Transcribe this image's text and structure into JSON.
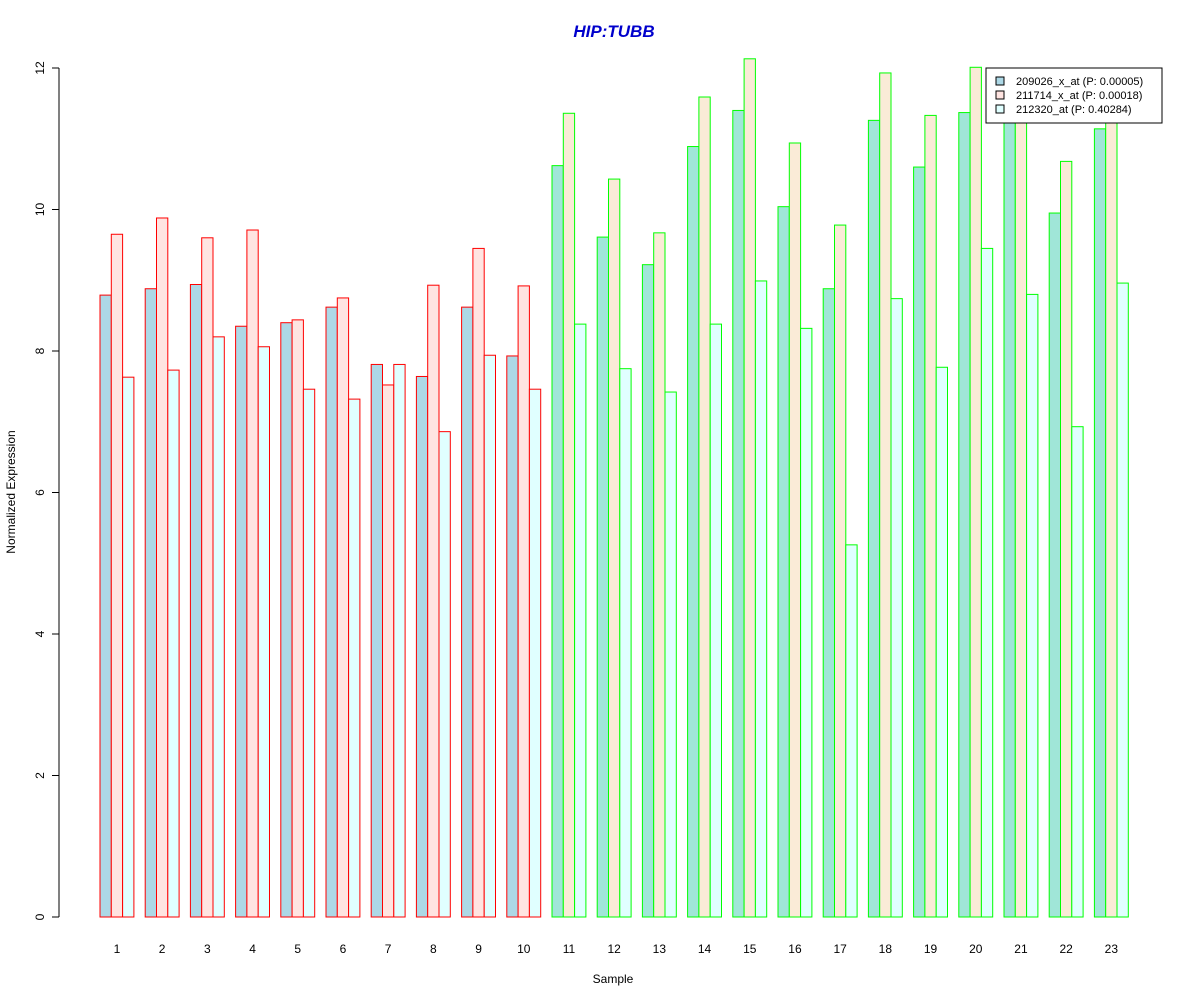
{
  "chart_data": {
    "type": "bar",
    "title": "HIP:TUBB",
    "title_color": "#0000CC",
    "xlabel": "Sample",
    "ylabel": "Normalized Expression",
    "ylim": [
      0,
      12
    ],
    "yticks": [
      "0",
      "2",
      "4",
      "6",
      "8",
      "10",
      "12"
    ],
    "grid": false,
    "legend_position": "top-right",
    "categories": [
      "1",
      "2",
      "3",
      "4",
      "5",
      "6",
      "7",
      "8",
      "9",
      "10",
      "11",
      "12",
      "13",
      "14",
      "15",
      "16",
      "17",
      "18",
      "19",
      "20",
      "21",
      "22",
      "23"
    ],
    "group_border_colors": [
      "#FF0000",
      "#FF0000",
      "#FF0000",
      "#FF0000",
      "#FF0000",
      "#FF0000",
      "#FF0000",
      "#FF0000",
      "#FF0000",
      "#FF0000",
      "#00FF00",
      "#00FF00",
      "#00FF00",
      "#00FF00",
      "#00FF00",
      "#00FF00",
      "#00FF00",
      "#00FF00",
      "#00FF00",
      "#00FF00",
      "#00FF00",
      "#00FF00",
      "#00FF00"
    ],
    "series": [
      {
        "name": "209026_x_at (P: 0.00005)",
        "fill_first_group": "#ADD8E6",
        "fill_second_group": "#A0E6D8",
        "values": [
          8.79,
          8.88,
          8.94,
          8.35,
          8.4,
          8.62,
          7.81,
          7.64,
          8.62,
          7.93,
          10.62,
          9.61,
          9.22,
          10.89,
          11.4,
          10.04,
          8.88,
          11.26,
          10.6,
          11.37,
          11.3,
          9.95,
          11.14
        ]
      },
      {
        "name": "211714_x_at (P: 0.00018)",
        "fill_first_group": "#FFE4E1",
        "fill_second_group": "#FAEBD7",
        "values": [
          9.65,
          9.88,
          9.6,
          9.71,
          8.44,
          8.75,
          7.52,
          8.93,
          9.45,
          8.92,
          11.36,
          10.43,
          9.67,
          11.59,
          12.13,
          10.94,
          9.78,
          11.93,
          11.33,
          12.01,
          11.7,
          10.68,
          11.45
        ]
      },
      {
        "name": "212320_at (P: 0.40284)",
        "fill_first_group": "#E0FFFF",
        "fill_second_group": "#E0FFFF",
        "values": [
          7.63,
          7.73,
          8.2,
          8.06,
          7.46,
          7.32,
          7.81,
          6.86,
          7.94,
          7.46,
          8.38,
          7.75,
          7.42,
          8.38,
          8.99,
          8.32,
          5.26,
          8.74,
          7.77,
          9.45,
          8.8,
          6.93,
          8.96
        ]
      }
    ]
  }
}
